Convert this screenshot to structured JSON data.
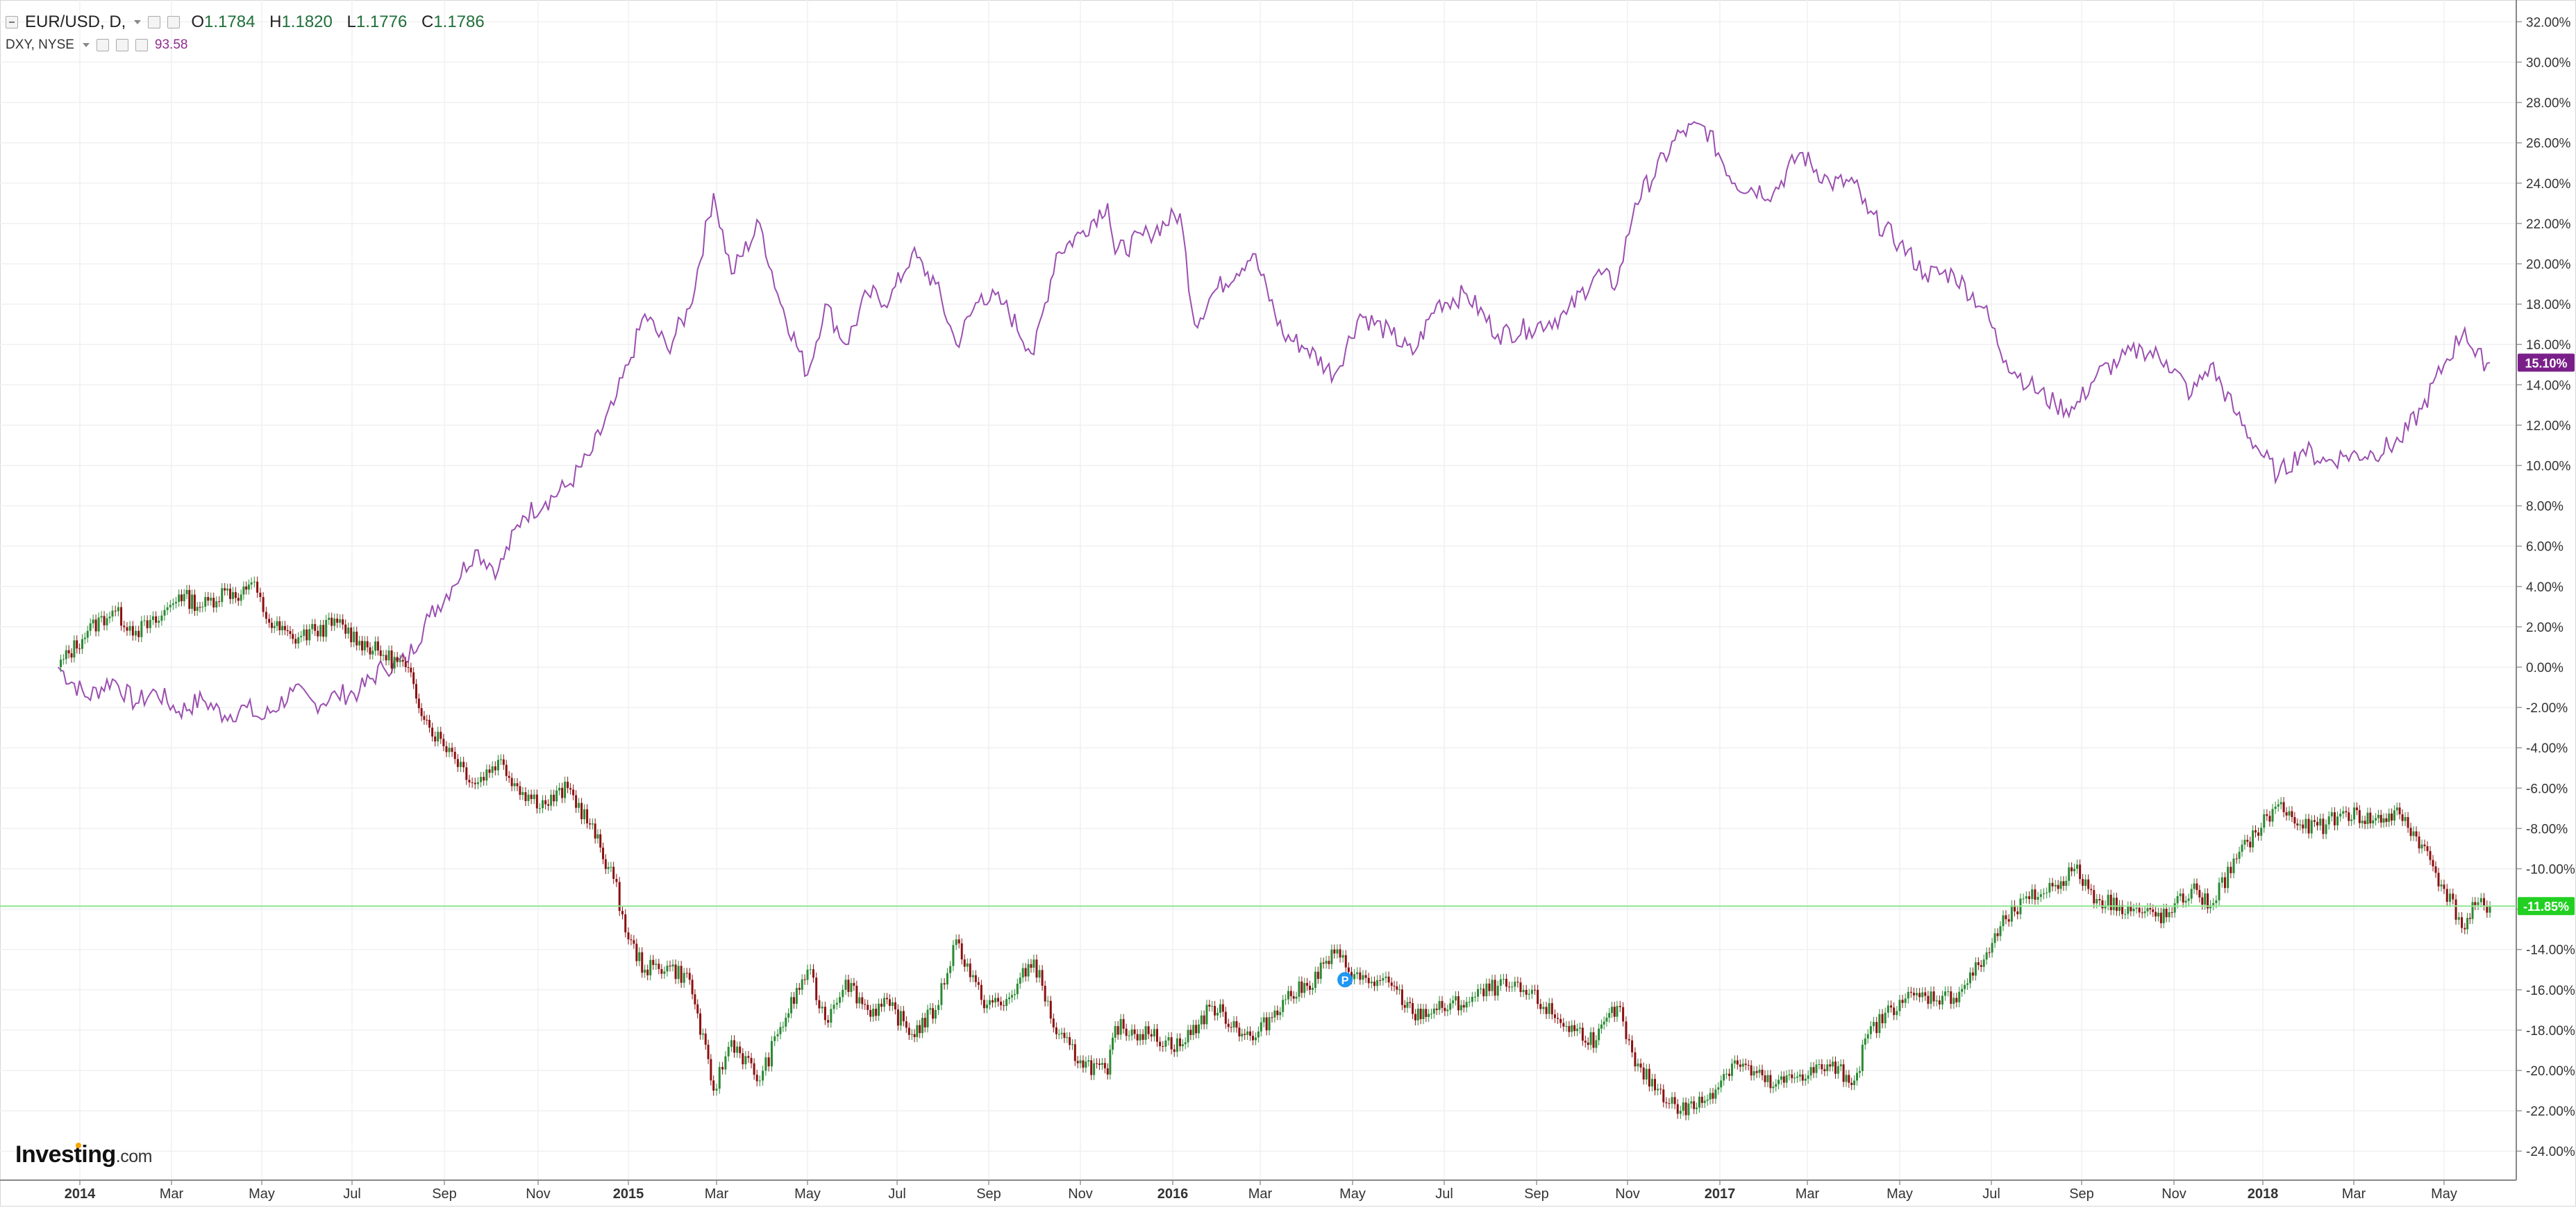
{
  "legend": {
    "symbol": "EUR/USD, D,",
    "open_key": "O",
    "open": "1.1784",
    "high_key": "H",
    "high": "1.1820",
    "low_key": "L",
    "low": "1.1776",
    "close_key": "C",
    "close": "1.1786",
    "compare_symbol": "DXY, NYSE",
    "compare_value": "93.58"
  },
  "logo": {
    "name": "Investing",
    "domain": ".com"
  },
  "colors": {
    "up_candle": "#2a8a33",
    "down_candle": "#8b1010",
    "dxy_line": "#9b4fb0",
    "dxy_badge": "#7a1f8a",
    "eurusd_badge": "#22d022",
    "price_line": "#8fe58f",
    "grid": "#f0f0f3"
  },
  "chart_data": {
    "type": "line",
    "x_axis_labels": [
      "2014",
      "Mar",
      "May",
      "Jul",
      "Sep",
      "Nov",
      "2015",
      "Mar",
      "May",
      "Jul",
      "Sep",
      "Nov",
      "2016",
      "Mar",
      "May",
      "Jul",
      "Sep",
      "Nov",
      "2017",
      "Mar",
      "May",
      "Jul",
      "Sep",
      "Nov",
      "2018",
      "Mar",
      "May"
    ],
    "x_axis_bold": [
      "2014",
      "2015",
      "2016",
      "2017",
      "2018"
    ],
    "x_range": [
      "2014-01-01",
      "2018-06-20"
    ],
    "y_axis_labels": [
      "32.00%",
      "30.00%",
      "28.00%",
      "26.00%",
      "24.00%",
      "22.00%",
      "20.00%",
      "18.00%",
      "16.00%",
      "14.00%",
      "12.00%",
      "10.00%",
      "8.00%",
      "6.00%",
      "4.00%",
      "2.00%",
      "0.00%",
      "-2.00%",
      "-4.00%",
      "-6.00%",
      "-8.00%",
      "-10.00%",
      "-12.00%",
      "-14.00%",
      "-16.00%",
      "-18.00%",
      "-20.00%",
      "-22.00%",
      "-24.00%"
    ],
    "y_range": [
      -25,
      33
    ],
    "y_unit": "percent change",
    "series": [
      {
        "name": "EUR/USD, D,",
        "style": "candlestick",
        "last_label": "-11.85%",
        "last_value": -11.85,
        "points": [
          [
            "2014-01-01",
            0
          ],
          [
            "2014-01-20",
            1.8
          ],
          [
            "2014-02-05",
            2.8
          ],
          [
            "2014-02-20",
            1.8
          ],
          [
            "2014-03-05",
            2.2
          ],
          [
            "2014-03-20",
            3.6
          ],
          [
            "2014-04-05",
            3.0
          ],
          [
            "2014-04-20",
            3.8
          ],
          [
            "2014-05-01",
            3.6
          ],
          [
            "2014-05-08",
            4.2
          ],
          [
            "2014-05-20",
            2.2
          ],
          [
            "2014-06-05",
            1.4
          ],
          [
            "2014-06-20",
            1.8
          ],
          [
            "2014-07-05",
            2.2
          ],
          [
            "2014-07-20",
            1.3
          ],
          [
            "2014-08-05",
            0.6
          ],
          [
            "2014-08-20",
            0.0
          ],
          [
            "2014-09-05",
            -3.0
          ],
          [
            "2014-09-20",
            -4.2
          ],
          [
            "2014-10-05",
            -5.8
          ],
          [
            "2014-10-20",
            -4.6
          ],
          [
            "2014-11-05",
            -6.2
          ],
          [
            "2014-11-20",
            -6.8
          ],
          [
            "2014-12-05",
            -6.0
          ],
          [
            "2014-12-20",
            -7.8
          ],
          [
            "2015-01-05",
            -10.5
          ],
          [
            "2015-01-15",
            -13.5
          ],
          [
            "2015-01-26",
            -15.0
          ],
          [
            "2015-02-10",
            -14.8
          ],
          [
            "2015-02-25",
            -15.5
          ],
          [
            "2015-03-13",
            -21.0
          ],
          [
            "2015-03-25",
            -18.5
          ],
          [
            "2015-04-13",
            -20.5
          ],
          [
            "2015-04-25",
            -18.2
          ],
          [
            "2015-05-15",
            -15.0
          ],
          [
            "2015-05-27",
            -17.5
          ],
          [
            "2015-06-10",
            -15.5
          ],
          [
            "2015-06-25",
            -17.0
          ],
          [
            "2015-07-10",
            -16.8
          ],
          [
            "2015-07-25",
            -18.2
          ],
          [
            "2015-08-10",
            -17.0
          ],
          [
            "2015-08-24",
            -13.5
          ],
          [
            "2015-09-10",
            -16.5
          ],
          [
            "2015-09-25",
            -16.8
          ],
          [
            "2015-10-15",
            -14.5
          ],
          [
            "2015-10-30",
            -18.2
          ],
          [
            "2015-11-15",
            -19.5
          ],
          [
            "2015-12-03",
            -20.2
          ],
          [
            "2015-12-08",
            -17.8
          ],
          [
            "2015-12-30",
            -18.2
          ],
          [
            "2016-01-20",
            -18.8
          ],
          [
            "2016-02-11",
            -16.8
          ],
          [
            "2016-03-10",
            -18.5
          ],
          [
            "2016-03-30",
            -16.5
          ],
          [
            "2016-04-15",
            -15.8
          ],
          [
            "2016-05-03",
            -14.2
          ],
          [
            "2016-05-20",
            -15.5
          ],
          [
            "2016-06-10",
            -15.8
          ],
          [
            "2016-06-24",
            -17.2
          ],
          [
            "2016-07-10",
            -17.0
          ],
          [
            "2016-07-30",
            -16.6
          ],
          [
            "2016-08-20",
            -15.8
          ],
          [
            "2016-09-10",
            -16.2
          ],
          [
            "2016-10-05",
            -17.8
          ],
          [
            "2016-10-25",
            -18.5
          ],
          [
            "2016-11-08",
            -16.8
          ],
          [
            "2016-11-20",
            -19.8
          ],
          [
            "2016-12-20",
            -22.0
          ],
          [
            "2017-01-05",
            -21.5
          ],
          [
            "2017-01-25",
            -19.5
          ],
          [
            "2017-02-20",
            -20.8
          ],
          [
            "2017-03-10",
            -20.2
          ],
          [
            "2017-03-30",
            -19.8
          ],
          [
            "2017-04-15",
            -20.5
          ],
          [
            "2017-04-24",
            -18.2
          ],
          [
            "2017-05-15",
            -16.5
          ],
          [
            "2017-06-01",
            -16.3
          ],
          [
            "2017-06-20",
            -16.4
          ],
          [
            "2017-07-10",
            -14.5
          ],
          [
            "2017-07-25",
            -12.5
          ],
          [
            "2017-08-10",
            -11.5
          ],
          [
            "2017-08-28",
            -10.8
          ],
          [
            "2017-09-10",
            -10.0
          ],
          [
            "2017-09-25",
            -11.5
          ],
          [
            "2017-10-10",
            -11.8
          ],
          [
            "2017-10-25",
            -12.2
          ],
          [
            "2017-11-10",
            -12.4
          ],
          [
            "2017-11-27",
            -11.0
          ],
          [
            "2017-12-10",
            -11.8
          ],
          [
            "2017-12-28",
            -9.5
          ],
          [
            "2018-01-10",
            -8.2
          ],
          [
            "2018-01-25",
            -6.8
          ],
          [
            "2018-02-10",
            -8.0
          ],
          [
            "2018-02-25",
            -7.8
          ],
          [
            "2018-03-10",
            -7.2
          ],
          [
            "2018-03-28",
            -7.6
          ],
          [
            "2018-04-15",
            -7.3
          ],
          [
            "2018-04-30",
            -8.8
          ],
          [
            "2018-05-15",
            -11.0
          ],
          [
            "2018-05-29",
            -13.0
          ],
          [
            "2018-06-05",
            -11.8
          ],
          [
            "2018-06-15",
            -11.85
          ]
        ]
      },
      {
        "name": "DXY, NYSE",
        "style": "line",
        "last_label": "15.10%",
        "last_value": 15.1,
        "points": [
          [
            "2014-01-01",
            0
          ],
          [
            "2014-01-20",
            -1.5
          ],
          [
            "2014-02-05",
            -0.6
          ],
          [
            "2014-02-20",
            -1.8
          ],
          [
            "2014-03-05",
            -1.2
          ],
          [
            "2014-03-20",
            -2.2
          ],
          [
            "2014-04-05",
            -1.6
          ],
          [
            "2014-04-20",
            -2.4
          ],
          [
            "2014-05-05",
            -2.0
          ],
          [
            "2014-05-15",
            -2.6
          ],
          [
            "2014-06-05",
            -1.2
          ],
          [
            "2014-06-20",
            -1.8
          ],
          [
            "2014-07-05",
            -1.4
          ],
          [
            "2014-07-20",
            -1.2
          ],
          [
            "2014-08-05",
            0.0
          ],
          [
            "2014-08-20",
            0.3
          ],
          [
            "2014-09-05",
            2.5
          ],
          [
            "2014-09-20",
            4.0
          ],
          [
            "2014-10-05",
            5.8
          ],
          [
            "2014-10-20",
            4.8
          ],
          [
            "2014-11-05",
            7.5
          ],
          [
            "2014-11-20",
            8.2
          ],
          [
            "2014-12-05",
            9.0
          ],
          [
            "2014-12-20",
            10.5
          ],
          [
            "2015-01-05",
            13.0
          ],
          [
            "2015-01-15",
            15.0
          ],
          [
            "2015-01-26",
            17.5
          ],
          [
            "2015-02-10",
            15.8
          ],
          [
            "2015-02-25",
            17.8
          ],
          [
            "2015-03-13",
            23.5
          ],
          [
            "2015-03-25",
            19.5
          ],
          [
            "2015-04-13",
            22.0
          ],
          [
            "2015-04-25",
            18.5
          ],
          [
            "2015-05-15",
            14.5
          ],
          [
            "2015-05-27",
            18.0
          ],
          [
            "2015-06-10",
            16.0
          ],
          [
            "2015-06-25",
            18.5
          ],
          [
            "2015-07-10",
            18.2
          ],
          [
            "2015-07-25",
            20.5
          ],
          [
            "2015-08-10",
            19.0
          ],
          [
            "2015-08-24",
            16.0
          ],
          [
            "2015-09-10",
            18.5
          ],
          [
            "2015-09-25",
            18.0
          ],
          [
            "2015-10-15",
            15.5
          ],
          [
            "2015-10-30",
            20.5
          ],
          [
            "2015-11-15",
            21.5
          ],
          [
            "2015-12-03",
            23.0
          ],
          [
            "2015-12-08",
            20.5
          ],
          [
            "2015-12-30",
            21.5
          ],
          [
            "2016-01-20",
            22.5
          ],
          [
            "2016-01-30",
            17.0
          ],
          [
            "2016-02-11",
            18.5
          ],
          [
            "2016-03-10",
            20.5
          ],
          [
            "2016-03-30",
            16.5
          ],
          [
            "2016-04-15",
            15.8
          ],
          [
            "2016-05-03",
            14.5
          ],
          [
            "2016-05-20",
            17.5
          ],
          [
            "2016-06-10",
            16.5
          ],
          [
            "2016-06-24",
            15.5
          ],
          [
            "2016-07-10",
            18.0
          ],
          [
            "2016-07-30",
            18.5
          ],
          [
            "2016-08-20",
            16.5
          ],
          [
            "2016-09-10",
            16.8
          ],
          [
            "2016-10-05",
            17.5
          ],
          [
            "2016-10-25",
            19.5
          ],
          [
            "2016-11-08",
            19.0
          ],
          [
            "2016-11-20",
            23.0
          ],
          [
            "2016-12-20",
            26.5
          ],
          [
            "2017-01-05",
            26.8
          ],
          [
            "2017-01-25",
            24.0
          ],
          [
            "2017-02-20",
            23.5
          ],
          [
            "2017-03-10",
            25.5
          ],
          [
            "2017-03-30",
            24.0
          ],
          [
            "2017-04-15",
            24.0
          ],
          [
            "2017-04-24",
            22.5
          ],
          [
            "2017-05-15",
            21.0
          ],
          [
            "2017-06-01",
            19.5
          ],
          [
            "2017-06-20",
            19.5
          ],
          [
            "2017-07-10",
            17.8
          ],
          [
            "2017-07-25",
            15.2
          ],
          [
            "2017-08-10",
            14.0
          ],
          [
            "2017-08-28",
            13.0
          ],
          [
            "2017-09-10",
            12.8
          ],
          [
            "2017-09-25",
            14.5
          ],
          [
            "2017-10-10",
            15.2
          ],
          [
            "2017-10-25",
            15.8
          ],
          [
            "2017-11-10",
            15.2
          ],
          [
            "2017-11-27",
            13.5
          ],
          [
            "2017-12-10",
            15.0
          ],
          [
            "2017-12-28",
            12.5
          ],
          [
            "2018-01-10",
            11.0
          ],
          [
            "2018-01-25",
            9.5
          ],
          [
            "2018-02-10",
            10.8
          ],
          [
            "2018-02-25",
            10.2
          ],
          [
            "2018-03-10",
            10.5
          ],
          [
            "2018-03-28",
            10.6
          ],
          [
            "2018-04-15",
            11.2
          ],
          [
            "2018-04-30",
            12.8
          ],
          [
            "2018-05-15",
            15.0
          ],
          [
            "2018-05-29",
            16.8
          ],
          [
            "2018-06-05",
            15.4
          ],
          [
            "2018-06-15",
            15.1
          ]
        ]
      }
    ],
    "annotations": [
      {
        "text": "P",
        "date": "2016-05-10",
        "value": -15.5,
        "shape": "circle",
        "color": "#2196f3"
      }
    ],
    "grid": true
  }
}
